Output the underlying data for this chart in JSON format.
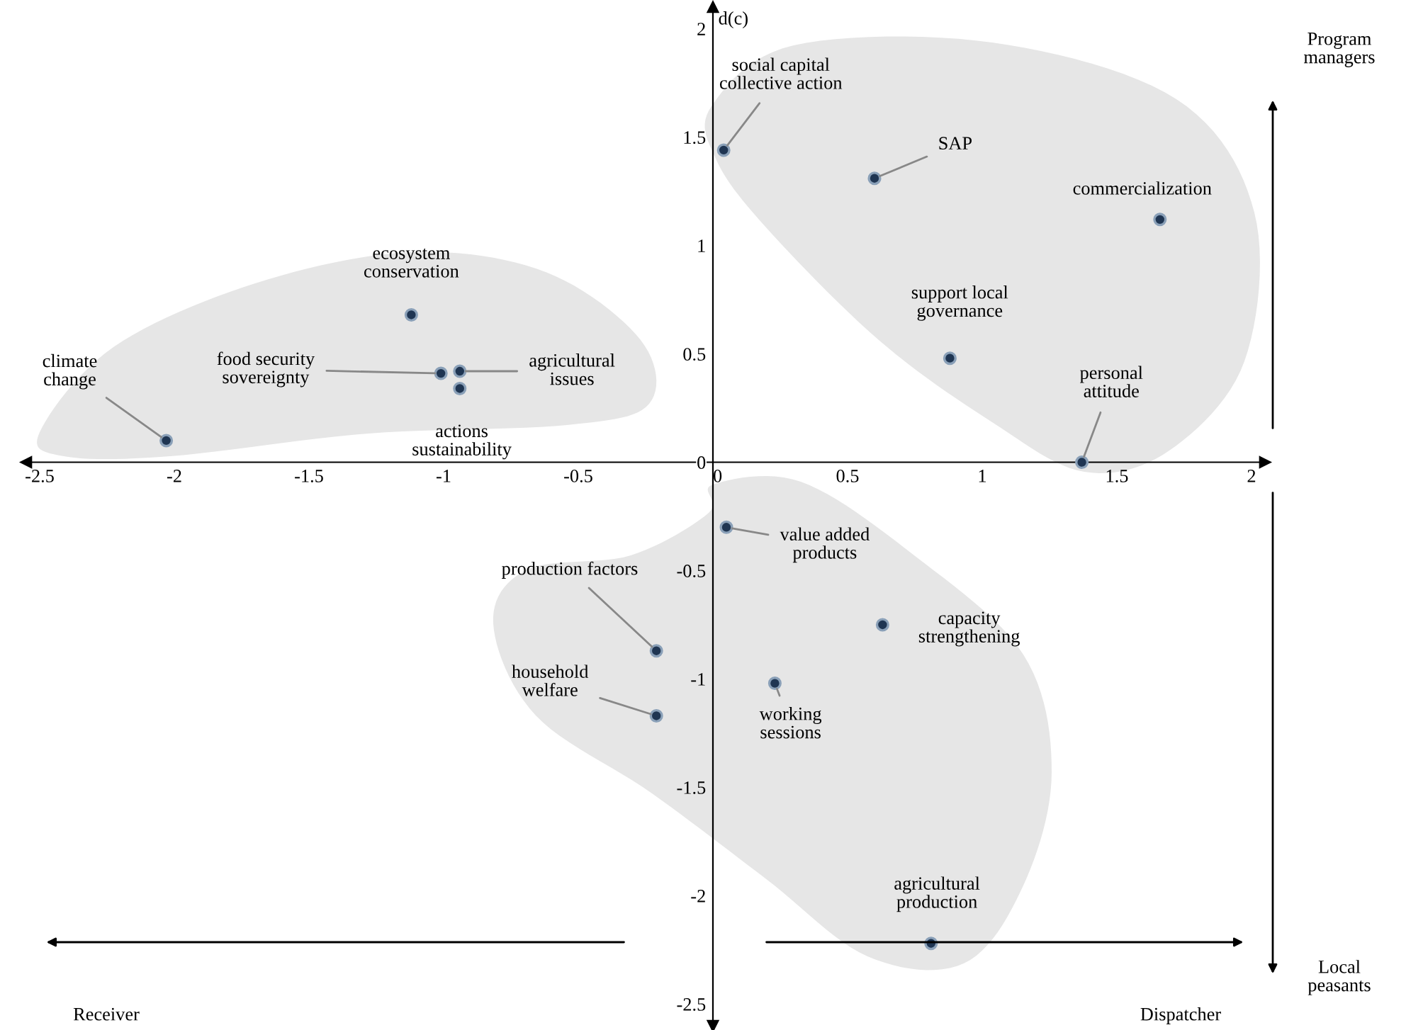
{
  "chart_data": {
    "type": "scatter",
    "ylabel": "d(c)",
    "x": [
      -2.03,
      -1.12,
      -1.01,
      -0.94,
      -0.94,
      0.04,
      0.6,
      1.66,
      0.88,
      1.37,
      0.05,
      0.63,
      -0.21,
      -0.21,
      0.23,
      0.81
    ],
    "series": [
      {
        "color": "#1f3552",
        "values": [
          0.1,
          0.68,
          0.41,
          0.42,
          0.34,
          1.44,
          1.31,
          1.12,
          0.48,
          0.0,
          -0.3,
          -0.75,
          -0.87,
          -1.17,
          -1.02,
          -2.22
        ]
      }
    ],
    "marker": "circle",
    "grid": false,
    "legend": false,
    "xlim": [
      -2.55,
      2.05
    ],
    "ylim": [
      -2.6,
      2.1
    ],
    "xticks": [
      -2.5,
      -2,
      -1.5,
      -1,
      -0.5,
      0,
      0.5,
      1,
      1.5,
      2
    ],
    "yticks": [
      -2.5,
      -2,
      -1.5,
      -1,
      -0.5,
      0,
      0.5,
      1,
      1.5,
      2
    ],
    "annotations": [
      {
        "text": "climate\nchange",
        "x": -2.03,
        "y": 0.1
      },
      {
        "text": "ecosystem\nconservation",
        "x": -1.12,
        "y": 0.68
      },
      {
        "text": "food security\nsovereignty",
        "x": -1.01,
        "y": 0.41
      },
      {
        "text": "agricultural\nissues",
        "x": -0.94,
        "y": 0.42
      },
      {
        "text": "actions\nsustainability",
        "x": -0.94,
        "y": 0.34
      },
      {
        "text": "social capital\ncollective action",
        "x": 0.04,
        "y": 1.44
      },
      {
        "text": "SAP",
        "x": 0.6,
        "y": 1.31
      },
      {
        "text": "commercialization",
        "x": 1.66,
        "y": 1.12
      },
      {
        "text": "support local\ngovernance",
        "x": 0.88,
        "y": 0.48
      },
      {
        "text": "personal\nattitude",
        "x": 1.37,
        "y": 0.0
      },
      {
        "text": "value added\nproducts",
        "x": 0.05,
        "y": -0.3
      },
      {
        "text": "capacity\nstrengthening",
        "x": 0.63,
        "y": -0.75
      },
      {
        "text": "production factors",
        "x": -0.21,
        "y": -0.87
      },
      {
        "text": "household\nwelfare",
        "x": -0.21,
        "y": -1.17
      },
      {
        "text": "working\nsessions",
        "x": 0.23,
        "y": -1.02
      },
      {
        "text": "agricultural\nproduction",
        "x": 0.81,
        "y": -2.22
      },
      "Program\nmanagers",
      "Local\npeasants",
      "Receiver",
      "Dispatcher"
    ]
  }
}
